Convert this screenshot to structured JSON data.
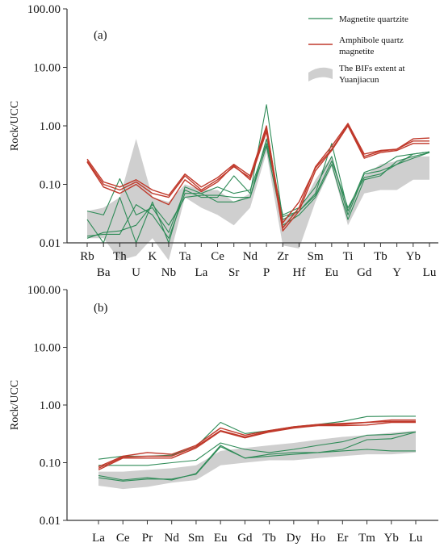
{
  "chart_data": [
    {
      "type": "line",
      "panel_label": "(a)",
      "ylabel": "Rock/UCC",
      "yscale": "log",
      "ylim": [
        0.01,
        100
      ],
      "yticks": [
        "0.01",
        "0.10",
        "1.00",
        "10.00",
        "100.00"
      ],
      "categories": [
        "Rb",
        "Ba",
        "Th",
        "U",
        "K",
        "Nb",
        "Ta",
        "La",
        "Ce",
        "Sr",
        "Nd",
        "P",
        "Zr",
        "Hf",
        "Sm",
        "Eu",
        "Ti",
        "Gd",
        "Tb",
        "Y",
        "Yb",
        "Lu"
      ],
      "legend": {
        "placement": "top-right",
        "entries": [
          "Magnetite quartzite",
          "Amphibole quartz magnetite",
          "The BIFs extent at Yuanjiacun"
        ]
      },
      "band": {
        "name": "The BIFs extent at Yuanjiacun",
        "color": "#cfcfcf",
        "lower": [
          0.012,
          0.012,
          0.005,
          0.006,
          0.012,
          0.005,
          0.06,
          0.04,
          0.03,
          0.02,
          0.04,
          0.35,
          0.009,
          0.008,
          0.05,
          0.2,
          0.02,
          0.07,
          0.08,
          0.08,
          0.12,
          0.12
        ],
        "upper": [
          0.035,
          0.04,
          0.06,
          0.6,
          0.06,
          0.05,
          0.1,
          0.08,
          0.08,
          0.05,
          0.07,
          0.6,
          0.025,
          0.035,
          0.12,
          0.3,
          0.04,
          0.14,
          0.22,
          0.25,
          0.3,
          0.3
        ]
      },
      "series": [
        {
          "group": "Magnetite quartzite",
          "color": "#2e8b57",
          "values": [
            0.035,
            0.03,
            0.125,
            0.03,
            0.04,
            0.015,
            0.08,
            0.06,
            0.06,
            0.14,
            0.07,
            2.3,
            0.025,
            0.035,
            0.07,
            0.5,
            0.035,
            0.16,
            0.2,
            0.3,
            0.33,
            0.36
          ]
        },
        {
          "group": "Magnetite quartzite",
          "color": "#2e8b57",
          "values": [
            0.025,
            0.01,
            0.06,
            0.01,
            0.05,
            0.01,
            0.09,
            0.07,
            0.09,
            0.07,
            0.08,
            0.5,
            0.03,
            0.04,
            0.09,
            0.3,
            0.03,
            0.15,
            0.17,
            0.22,
            0.33,
            0.36
          ]
        },
        {
          "group": "Magnetite quartzite",
          "color": "#2e8b57",
          "values": [
            0.013,
            0.014,
            0.014,
            0.045,
            0.03,
            0.012,
            0.07,
            0.07,
            0.05,
            0.05,
            0.06,
            0.45,
            0.02,
            0.03,
            0.06,
            0.22,
            0.025,
            0.12,
            0.14,
            0.25,
            0.3,
            0.35
          ]
        },
        {
          "group": "Magnetite quartzite",
          "color": "#2e8b57",
          "values": [
            0.012,
            0.015,
            0.016,
            0.02,
            0.045,
            0.02,
            0.06,
            0.065,
            0.065,
            0.06,
            0.06,
            0.6,
            0.028,
            0.035,
            0.065,
            0.25,
            0.04,
            0.13,
            0.15,
            0.22,
            0.28,
            0.35
          ]
        },
        {
          "group": "Amphibole quartz magnetite",
          "color": "#c0392b",
          "values": [
            0.27,
            0.11,
            0.09,
            0.12,
            0.08,
            0.065,
            0.15,
            0.09,
            0.13,
            0.22,
            0.14,
            1.0,
            0.018,
            0.04,
            0.2,
            0.45,
            1.1,
            0.33,
            0.38,
            0.4,
            0.6,
            0.62
          ]
        },
        {
          "group": "Amphibole quartz magnetite",
          "color": "#c0392b",
          "values": [
            0.25,
            0.1,
            0.08,
            0.11,
            0.07,
            0.06,
            0.14,
            0.08,
            0.12,
            0.2,
            0.13,
            0.9,
            0.022,
            0.05,
            0.19,
            0.4,
            1.05,
            0.3,
            0.37,
            0.4,
            0.55,
            0.55
          ]
        },
        {
          "group": "Amphibole quartz magnetite",
          "color": "#c0392b",
          "values": [
            0.24,
            0.09,
            0.07,
            0.1,
            0.06,
            0.045,
            0.12,
            0.075,
            0.11,
            0.21,
            0.12,
            0.8,
            0.016,
            0.035,
            0.17,
            0.38,
            1.0,
            0.28,
            0.35,
            0.38,
            0.5,
            0.5
          ]
        }
      ]
    },
    {
      "type": "line",
      "panel_label": "(b)",
      "ylabel": "Rock/UCC",
      "yscale": "log",
      "ylim": [
        0.01,
        100
      ],
      "yticks": [
        "0.01",
        "0.10",
        "1.00",
        "10.00",
        "100.00"
      ],
      "categories": [
        "La",
        "Ce",
        "Pr",
        "Nd",
        "Sm",
        "Eu",
        "Gd",
        "Tb",
        "Dy",
        "Ho",
        "Er",
        "Tm",
        "Yb",
        "Lu"
      ],
      "band": {
        "name": "The BIFs extent at Yuanjiacun",
        "color": "#cfcfcf",
        "lower": [
          0.04,
          0.035,
          0.038,
          0.045,
          0.05,
          0.09,
          0.1,
          0.11,
          0.11,
          0.12,
          0.13,
          0.14,
          0.14,
          0.15
        ],
        "upper": [
          0.07,
          0.07,
          0.075,
          0.08,
          0.09,
          0.16,
          0.18,
          0.2,
          0.22,
          0.25,
          0.28,
          0.3,
          0.33,
          0.36
        ]
      },
      "series": [
        {
          "group": "Magnetite quartzite",
          "color": "#2e8b57",
          "values": [
            0.115,
            0.13,
            0.13,
            0.135,
            0.19,
            0.5,
            0.32,
            0.36,
            0.42,
            0.46,
            0.52,
            0.63,
            0.64,
            0.64
          ]
        },
        {
          "group": "Magnetite quartzite",
          "color": "#2e8b57",
          "values": [
            0.09,
            0.09,
            0.09,
            0.1,
            0.11,
            0.22,
            0.17,
            0.15,
            0.17,
            0.2,
            0.23,
            0.3,
            0.31,
            0.34
          ]
        },
        {
          "group": "Magnetite quartzite",
          "color": "#2e8b57",
          "values": [
            0.06,
            0.05,
            0.055,
            0.05,
            0.065,
            0.2,
            0.12,
            0.14,
            0.15,
            0.15,
            0.16,
            0.17,
            0.16,
            0.16
          ]
        },
        {
          "group": "Magnetite quartzite",
          "color": "#2e8b57",
          "values": [
            0.055,
            0.048,
            0.052,
            0.052,
            0.063,
            0.19,
            0.12,
            0.13,
            0.14,
            0.15,
            0.17,
            0.25,
            0.26,
            0.34
          ]
        },
        {
          "group": "Amphibole quartz magnetite",
          "color": "#c0392b",
          "values": [
            0.085,
            0.13,
            0.15,
            0.14,
            0.2,
            0.4,
            0.3,
            0.36,
            0.42,
            0.46,
            0.48,
            0.5,
            0.55,
            0.55
          ]
        },
        {
          "group": "Amphibole quartz magnetite",
          "color": "#c0392b",
          "values": [
            0.08,
            0.125,
            0.13,
            0.13,
            0.19,
            0.36,
            0.28,
            0.35,
            0.41,
            0.45,
            0.46,
            0.5,
            0.52,
            0.52
          ]
        },
        {
          "group": "Amphibole quartz magnetite",
          "color": "#c0392b",
          "values": [
            0.075,
            0.12,
            0.12,
            0.12,
            0.18,
            0.35,
            0.27,
            0.34,
            0.4,
            0.44,
            0.44,
            0.45,
            0.5,
            0.5
          ]
        }
      ]
    }
  ]
}
